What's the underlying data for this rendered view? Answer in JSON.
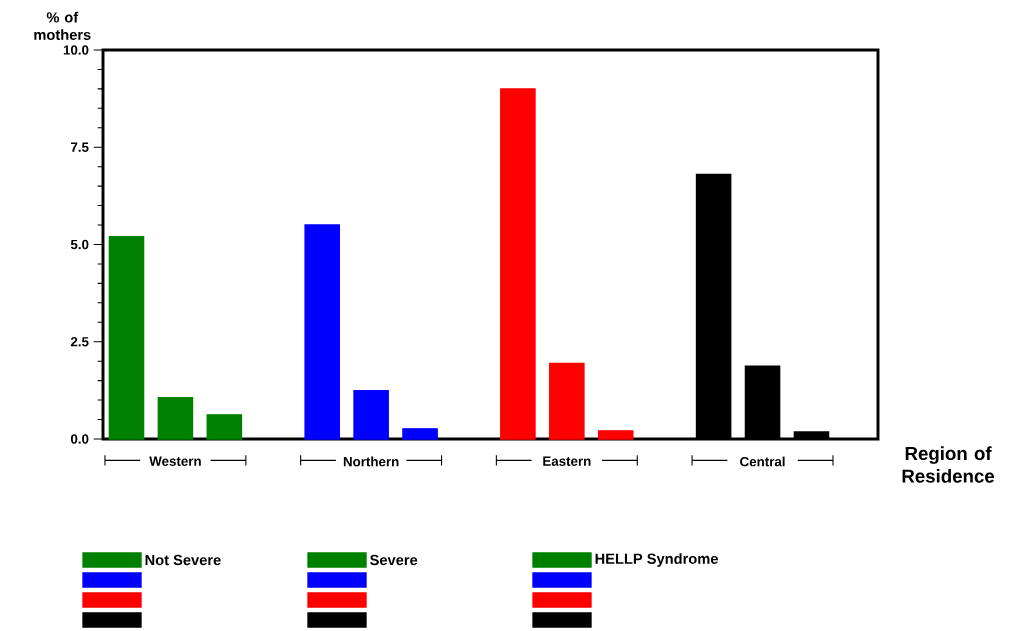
{
  "chart_data": {
    "type": "bar",
    "categories": [
      "Western",
      "Northern",
      "Eastern",
      "Central"
    ],
    "xlabel": "Region of Residence",
    "ylabel": "% of mothers",
    "ylim": [
      0,
      10
    ],
    "yticks": [
      {
        "value": 0,
        "label": "0.0"
      },
      {
        "value": 2.5,
        "label": "2.5"
      },
      {
        "value": 5,
        "label": "5.0"
      },
      {
        "value": 7.5,
        "label": "7.5"
      },
      {
        "value": 10,
        "label": "10.0"
      }
    ],
    "legend": "bottom",
    "grid": false,
    "series": [
      {
        "name": "Not Severe",
        "colors": [
          "#008000",
          "#0000ff",
          "#ff0000",
          "#000000"
        ],
        "values": [
          5.2,
          5.5,
          9.0,
          6.8
        ]
      },
      {
        "name": "Severe",
        "colors": [
          "#008000",
          "#0000ff",
          "#ff0000",
          "#000000"
        ],
        "values": [
          1.06,
          1.24,
          1.94,
          1.87
        ]
      },
      {
        "name": "HELLP Syndrome",
        "colors": [
          "#008000",
          "#0000ff",
          "#ff0000",
          "#000000"
        ],
        "values": [
          0.62,
          0.26,
          0.21,
          0.18
        ]
      }
    ]
  }
}
